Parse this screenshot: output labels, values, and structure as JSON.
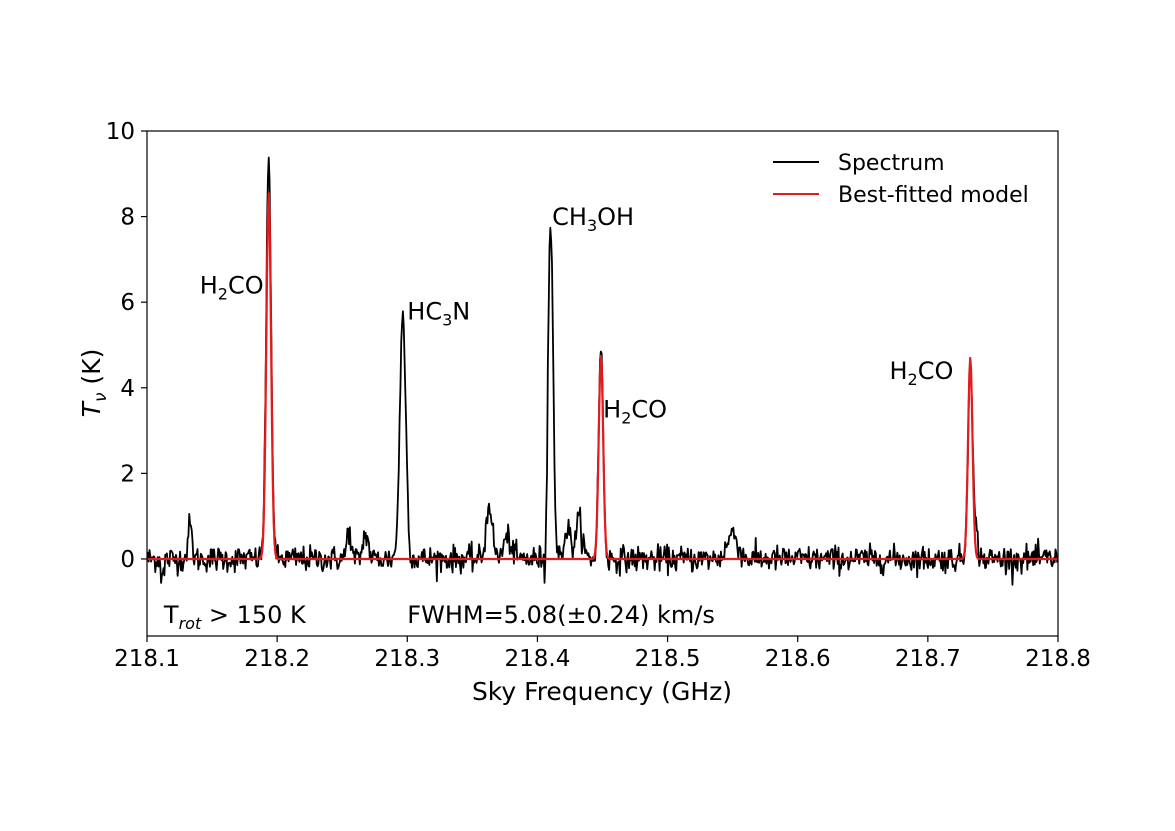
{
  "chart_data": {
    "type": "line",
    "xlabel": "Sky Frequency (GHz)",
    "ylabel_main": "T",
    "ylabel_sub": "ν",
    "ylabel_unit": " (K)",
    "xlim": [
      218.1,
      218.8
    ],
    "ylim": [
      -1.8,
      10
    ],
    "x_ticks": [
      218.1,
      218.2,
      218.3,
      218.4,
      218.5,
      218.6,
      218.7,
      218.8
    ],
    "x_tick_labels": [
      "218.1",
      "218.2",
      "218.3",
      "218.4",
      "218.5",
      "218.6",
      "218.7",
      "218.8"
    ],
    "y_ticks": [
      0,
      2,
      4,
      6,
      8,
      10
    ],
    "y_tick_labels": [
      "0",
      "2",
      "4",
      "6",
      "8",
      "10"
    ],
    "grid": false,
    "legend_position": "top-right",
    "legend": [
      {
        "label": "Spectrum",
        "color": "#000000"
      },
      {
        "label": "Best-fitted model",
        "color": "#e41a1c"
      }
    ],
    "noise_sigma": 0.15,
    "series": [
      {
        "name": "Spectrum",
        "color": "#000000",
        "peaks": [
          {
            "x": 218.133,
            "height": 0.8,
            "width": 0.0015
          },
          {
            "x": 218.1935,
            "height": 9.3,
            "width": 0.0019
          },
          {
            "x": 218.255,
            "height": 0.7,
            "width": 0.0015
          },
          {
            "x": 218.268,
            "height": 0.6,
            "width": 0.002
          },
          {
            "x": 218.2966,
            "height": 5.7,
            "width": 0.0023
          },
          {
            "x": 218.363,
            "height": 1.3,
            "width": 0.0023
          },
          {
            "x": 218.377,
            "height": 0.5,
            "width": 0.003
          },
          {
            "x": 218.4101,
            "height": 8.1,
            "width": 0.0019
          },
          {
            "x": 218.423,
            "height": 0.7,
            "width": 0.0025
          },
          {
            "x": 218.432,
            "height": 0.9,
            "width": 0.0025
          },
          {
            "x": 218.4488,
            "height": 5.0,
            "width": 0.0017
          },
          {
            "x": 218.55,
            "height": 0.6,
            "width": 0.004
          },
          {
            "x": 218.7326,
            "height": 4.8,
            "width": 0.0017
          },
          {
            "x": 218.737,
            "height": 0.6,
            "width": 0.0015
          }
        ]
      },
      {
        "name": "Best-fitted model",
        "color": "#e41a1c",
        "peaks": [
          {
            "x": 218.1935,
            "height": 8.55,
            "width": 0.0018
          },
          {
            "x": 218.4488,
            "height": 4.75,
            "width": 0.0017
          },
          {
            "x": 218.7326,
            "height": 4.7,
            "width": 0.0017
          }
        ]
      }
    ],
    "annotations": [
      {
        "pre": "H",
        "sub": "2",
        "post": "CO",
        "x": 218.1405,
        "y": 6.2
      },
      {
        "pre": "HC",
        "sub": "3",
        "post": "N",
        "x": 218.3,
        "y": 5.6
      },
      {
        "pre": "CH",
        "sub": "3",
        "post": "OH",
        "x": 218.4113,
        "y": 7.8
      },
      {
        "pre": "H",
        "sub": "2",
        "post": "CO",
        "x": 218.4505,
        "y": 3.3
      },
      {
        "pre": "H",
        "sub": "2",
        "post": "CO",
        "x": 218.6705,
        "y": 4.2
      }
    ],
    "notes": [
      {
        "pre": "T",
        "sub": "rot",
        "post": " > 150 K",
        "x": 218.113,
        "y": -1.5
      },
      {
        "pre": "FWHM=5.08(±0.24) km/s",
        "sub": "",
        "post": "",
        "x": 218.3,
        "y": -1.5
      }
    ]
  }
}
